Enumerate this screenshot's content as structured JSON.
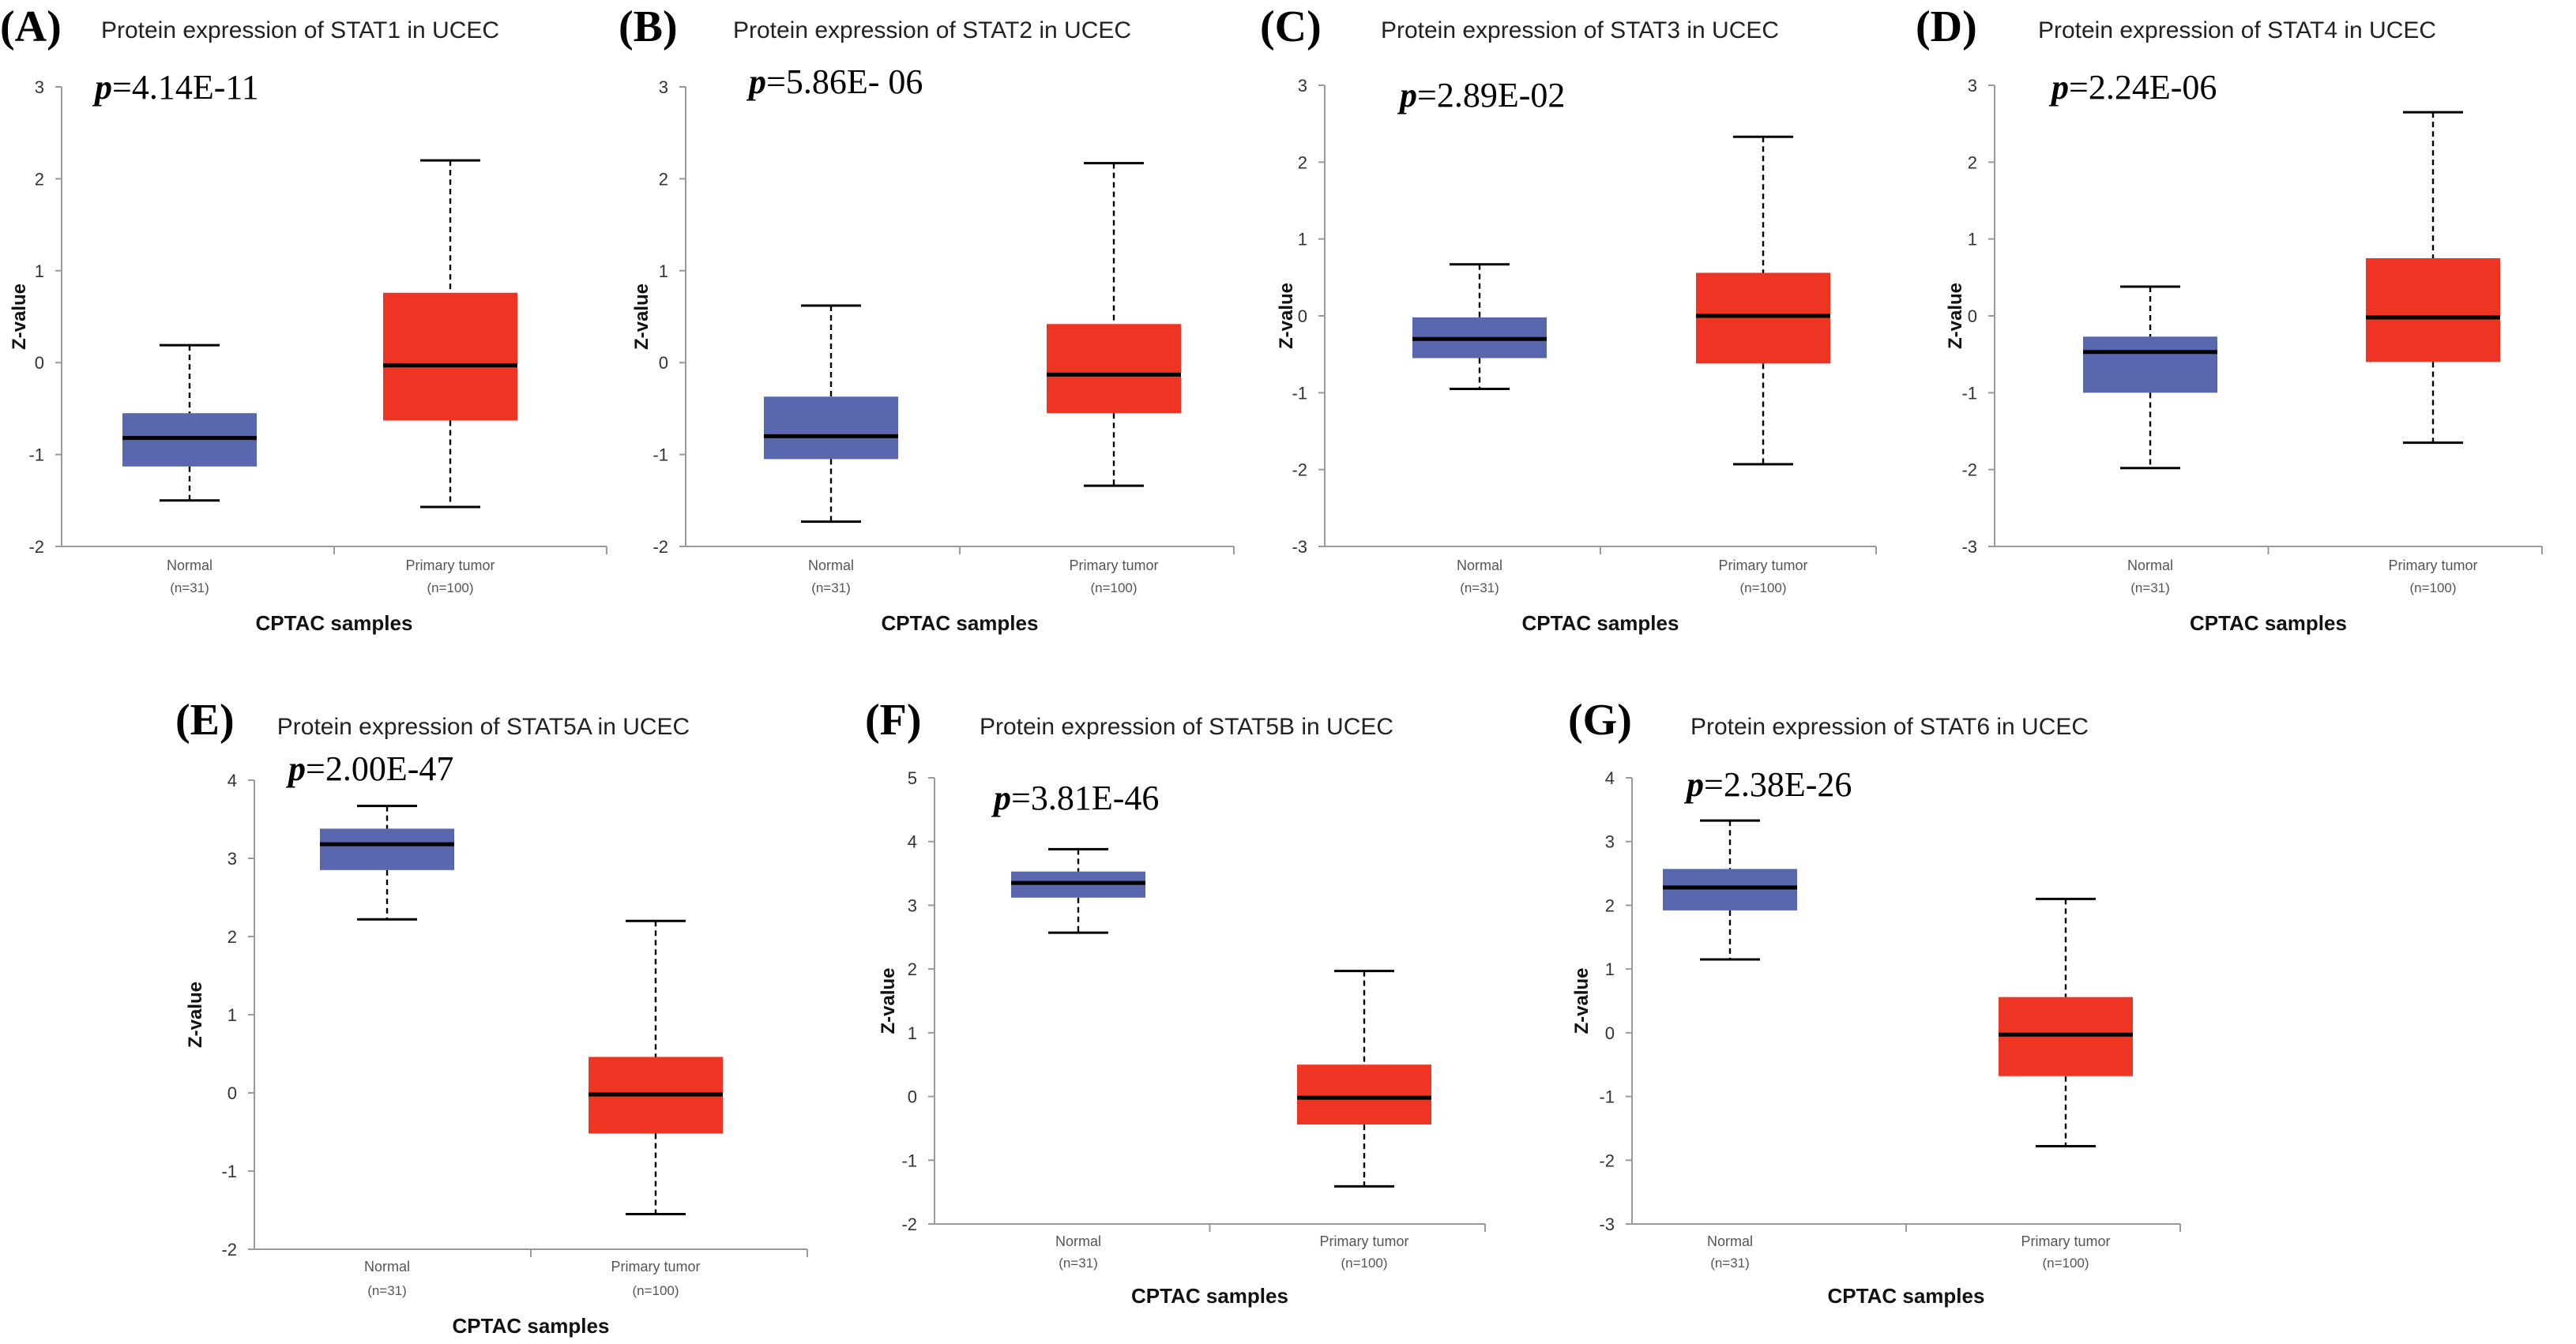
{
  "figure": {
    "source": "CPTAC"
  },
  "colors": {
    "normal": "#5867ae",
    "tumor": "#ee3524"
  },
  "chart_data": [
    {
      "type": "box",
      "panel_label": "(A)",
      "title": "Protein expression of STAT1 in UCEC",
      "p_value": "=4.14E-11",
      "xlabel": "CPTAC samples",
      "ylabel": "Z-value",
      "ylim": [
        -2,
        3
      ],
      "yticks": [
        -2,
        -1,
        0,
        1,
        2,
        3
      ],
      "groups": [
        {
          "name": "Normal",
          "n": "(n=31)",
          "min": -1.5,
          "q1": -1.13,
          "median": -0.82,
          "q3": -0.55,
          "max": 0.19
        },
        {
          "name": "Primary tumor",
          "n": "(n=100)",
          "min": -1.57,
          "q1": -0.63,
          "median": -0.03,
          "q3": 0.76,
          "max": 2.2
        }
      ]
    },
    {
      "type": "box",
      "panel_label": "(B)",
      "title": "Protein expression of STAT2 in UCEC",
      "p_value": "=5.86E- 06",
      "xlabel": "CPTAC samples",
      "ylabel": "Z-value",
      "ylim": [
        -2,
        3
      ],
      "yticks": [
        -2,
        -1,
        0,
        1,
        2,
        3
      ],
      "groups": [
        {
          "name": "Normal",
          "n": "(n=31)",
          "min": -1.73,
          "q1": -1.05,
          "median": -0.8,
          "q3": -0.37,
          "max": 0.62
        },
        {
          "name": "Primary tumor",
          "n": "(n=100)",
          "min": -1.34,
          "q1": -0.55,
          "median": -0.13,
          "q3": 0.42,
          "max": 2.17
        }
      ]
    },
    {
      "type": "box",
      "panel_label": "(C)",
      "title": "Protein expression of STAT3 in UCEC",
      "p_value": "=2.89E-02",
      "xlabel": "CPTAC samples",
      "ylabel": "Z-value",
      "ylim": [
        -3,
        3
      ],
      "yticks": [
        -3,
        -2,
        -1,
        0,
        1,
        2,
        3
      ],
      "groups": [
        {
          "name": "Normal",
          "n": "(n=31)",
          "min": -0.95,
          "q1": -0.55,
          "median": -0.3,
          "q3": -0.02,
          "max": 0.67
        },
        {
          "name": "Primary tumor",
          "n": "(n=100)",
          "min": -1.93,
          "q1": -0.62,
          "median": 0.0,
          "q3": 0.56,
          "max": 2.33
        }
      ]
    },
    {
      "type": "box",
      "panel_label": "(D)",
      "title": "Protein expression of STAT4 in UCEC",
      "p_value": "=2.24E-06",
      "xlabel": "CPTAC samples",
      "ylabel": "Z-value",
      "ylim": [
        -3,
        3
      ],
      "yticks": [
        -3,
        -2,
        -1,
        0,
        1,
        2,
        3
      ],
      "groups": [
        {
          "name": "Normal",
          "n": "(n=31)",
          "min": -1.98,
          "q1": -1.0,
          "median": -0.47,
          "q3": -0.27,
          "max": 0.38
        },
        {
          "name": "Primary tumor",
          "n": "(n=100)",
          "min": -1.65,
          "q1": -0.6,
          "median": -0.02,
          "q3": 0.75,
          "max": 2.65
        }
      ]
    },
    {
      "type": "box",
      "panel_label": "(E)",
      "title": "Protein expression of STAT5A in UCEC",
      "p_value": "=2.00E-47",
      "xlabel": "CPTAC samples",
      "ylabel": "Z-value",
      "ylim": [
        -2,
        4
      ],
      "yticks": [
        -2,
        -1,
        0,
        1,
        2,
        3,
        4
      ],
      "groups": [
        {
          "name": "Normal",
          "n": "(n=31)",
          "min": 2.22,
          "q1": 2.85,
          "median": 3.18,
          "q3": 3.38,
          "max": 3.67
        },
        {
          "name": "Primary tumor",
          "n": "(n=100)",
          "min": -1.55,
          "q1": -0.52,
          "median": -0.02,
          "q3": 0.46,
          "max": 2.2
        }
      ]
    },
    {
      "type": "box",
      "panel_label": "(F)",
      "title": "Protein expression of STAT5B in UCEC",
      "p_value": "=3.81E-46",
      "xlabel": "CPTAC samples",
      "ylabel": "Z-value",
      "ylim": [
        -2,
        5
      ],
      "yticks": [
        -2,
        -1,
        0,
        1,
        2,
        3,
        4,
        5
      ],
      "groups": [
        {
          "name": "Normal",
          "n": "(n=31)",
          "min": 2.57,
          "q1": 3.12,
          "median": 3.35,
          "q3": 3.53,
          "max": 3.88
        },
        {
          "name": "Primary tumor",
          "n": "(n=100)",
          "min": -1.41,
          "q1": -0.44,
          "median": -0.02,
          "q3": 0.5,
          "max": 1.97
        }
      ]
    },
    {
      "type": "box",
      "panel_label": "(G)",
      "title": "Protein expression of STAT6 in UCEC",
      "p_value": "=2.38E-26",
      "xlabel": "CPTAC samples",
      "ylabel": "Z-value",
      "ylim": [
        -3,
        4
      ],
      "yticks": [
        -3,
        -2,
        -1,
        0,
        1,
        2,
        3,
        4
      ],
      "groups": [
        {
          "name": "Normal",
          "n": "(n=31)",
          "min": 1.15,
          "q1": 1.92,
          "median": 2.28,
          "q3": 2.57,
          "max": 3.33
        },
        {
          "name": "Primary tumor",
          "n": "(n=100)",
          "min": -1.78,
          "q1": -0.68,
          "median": -0.03,
          "q3": 0.56,
          "max": 2.1
        }
      ]
    }
  ]
}
